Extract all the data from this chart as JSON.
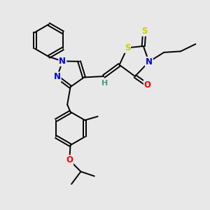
{
  "background_color": "#e8e8e8",
  "atom_colors": {
    "N": "#0000ff",
    "O": "#ff0000",
    "S": "#cccc00",
    "C": "#000000",
    "H": "#4a9a8a"
  },
  "bond_color": "#000000",
  "figsize": [
    3.0,
    3.0
  ],
  "dpi": 100
}
